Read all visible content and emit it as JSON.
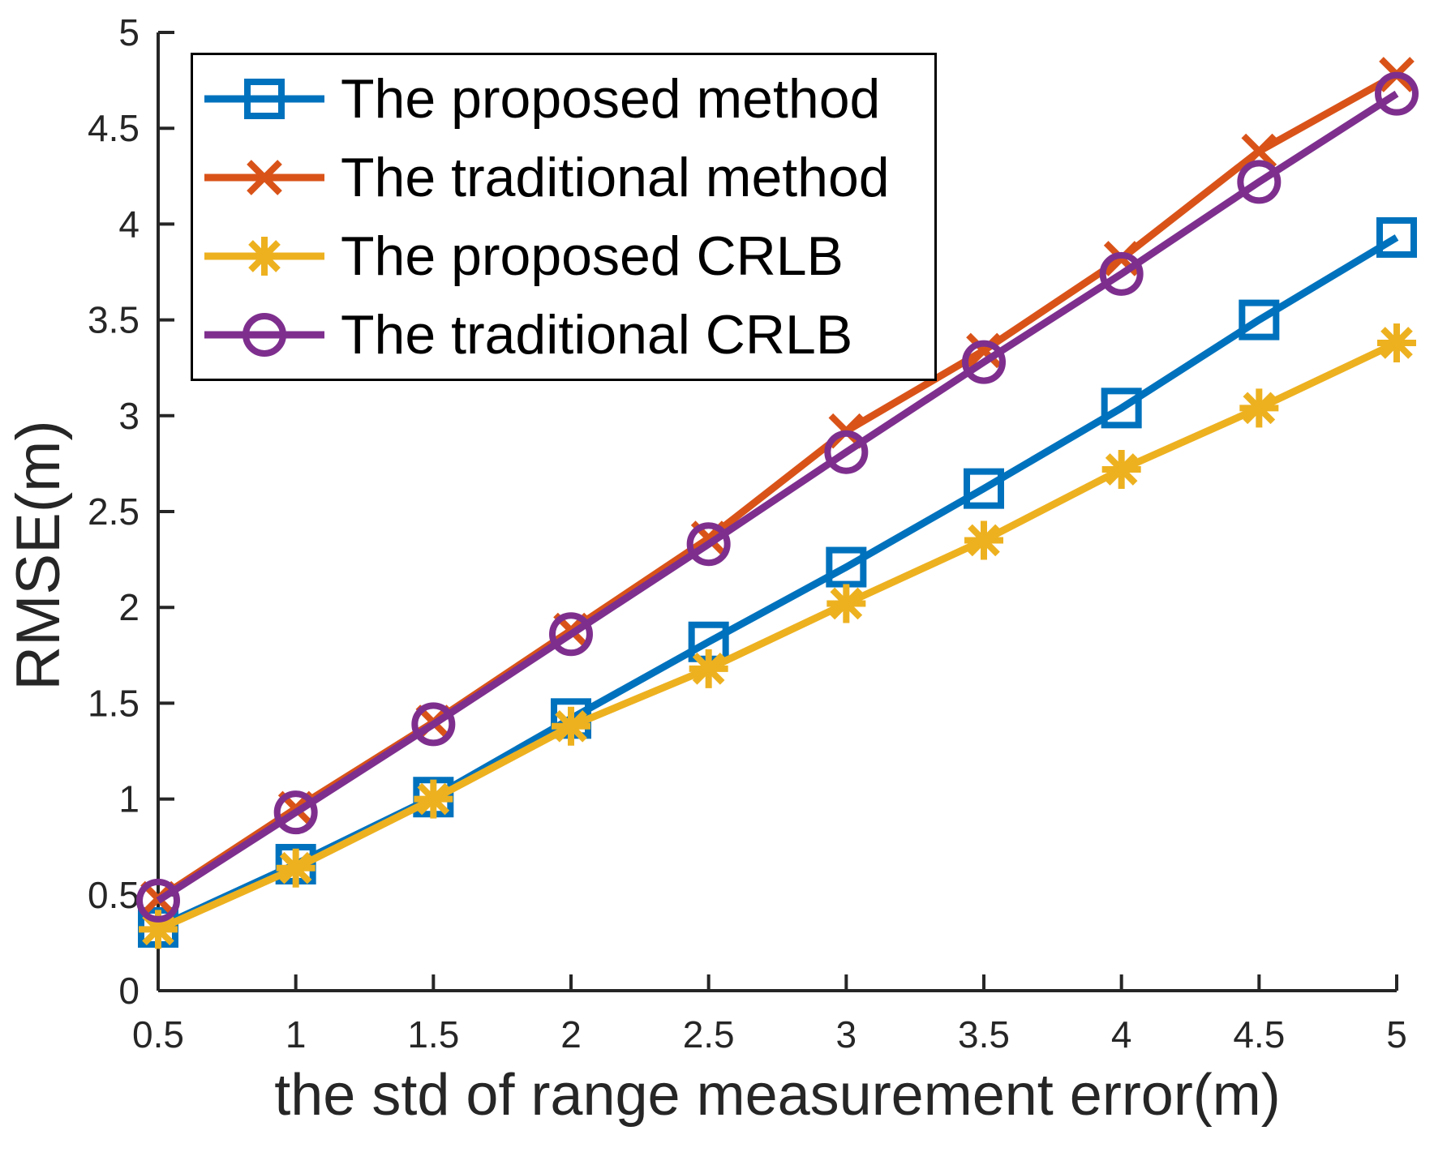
{
  "chart_data": {
    "type": "line",
    "title": "",
    "xlabel": "the std of range measurement error(m)",
    "ylabel": "RMSE(m)",
    "xlim": [
      0.5,
      5
    ],
    "ylim": [
      0,
      5
    ],
    "grid": false,
    "legend_position": "top-left",
    "axis_color": "#262626",
    "legend_border_color": "#000000",
    "x": [
      0.5,
      1,
      1.5,
      2,
      2.5,
      3,
      3.5,
      4,
      4.5,
      5
    ],
    "xtick_labels": [
      "0.5",
      "1",
      "1.5",
      "2",
      "2.5",
      "3",
      "3.5",
      "4",
      "4.5",
      "5"
    ],
    "ytick_values": [
      0,
      0.5,
      1,
      1.5,
      2,
      2.5,
      3,
      3.5,
      4,
      4.5,
      5
    ],
    "ytick_labels": [
      "0",
      "0.5",
      "1",
      "1.5",
      "2",
      "2.5",
      "3",
      "3.5",
      "4",
      "4.5",
      "5"
    ],
    "series": [
      {
        "name": "The proposed method",
        "color": "#0072BD",
        "marker": "square",
        "values": [
          0.33,
          0.66,
          1.01,
          1.42,
          1.82,
          2.21,
          2.62,
          3.04,
          3.5,
          3.93
        ]
      },
      {
        "name": "The traditional method",
        "color": "#D95319",
        "marker": "x",
        "values": [
          0.48,
          0.95,
          1.4,
          1.88,
          2.36,
          2.92,
          3.34,
          3.82,
          4.38,
          4.78
        ]
      },
      {
        "name": "The proposed CRLB",
        "color": "#EDB120",
        "marker": "asterisk",
        "values": [
          0.32,
          0.64,
          1.0,
          1.38,
          1.68,
          2.02,
          2.35,
          2.72,
          3.04,
          3.38
        ]
      },
      {
        "name": "The traditional CRLB",
        "color": "#7E2F8E",
        "marker": "circle",
        "values": [
          0.47,
          0.93,
          1.39,
          1.86,
          2.33,
          2.81,
          3.28,
          3.74,
          4.22,
          4.68
        ]
      }
    ]
  }
}
